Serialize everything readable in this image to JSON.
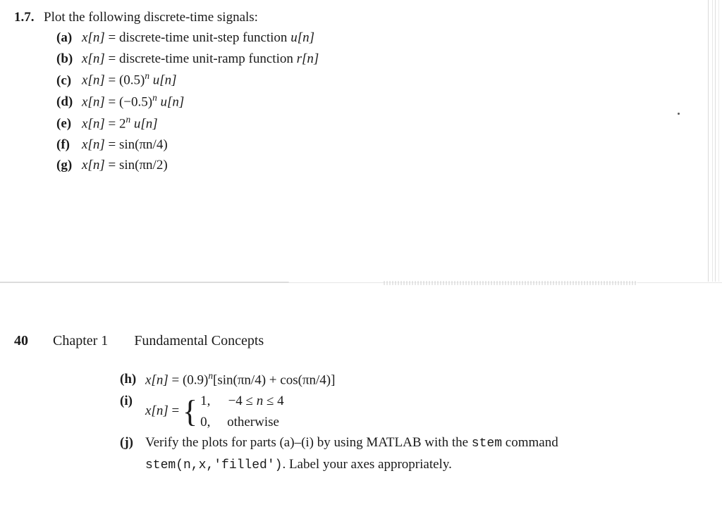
{
  "problem": {
    "number": "1.7.",
    "stem": "Plot the following discrete-time signals:"
  },
  "parts_upper": [
    {
      "label": "(a)",
      "lhs": "x[n]",
      "eq": "=",
      "rhs_plain": "discrete-time unit-step function ",
      "rhs_math": "u[n]"
    },
    {
      "label": "(b)",
      "lhs": "x[n]",
      "eq": "=",
      "rhs_plain": "discrete-time unit-ramp function ",
      "rhs_math": "r[n]"
    },
    {
      "label": "(c)",
      "lhs": "x[n]",
      "eq": "=",
      "rhs_math": "(0.5)",
      "rhs_sup": "n",
      "rhs_tail": " u[n]"
    },
    {
      "label": "(d)",
      "lhs": "x[n]",
      "eq": "=",
      "rhs_math": "(−0.5)",
      "rhs_sup": "n",
      "rhs_tail": " u[n]"
    },
    {
      "label": "(e)",
      "lhs": "x[n]",
      "eq": "=",
      "rhs_math": "2",
      "rhs_sup": "n",
      "rhs_tail": " u[n]"
    },
    {
      "label": "(f)",
      "lhs": "x[n]",
      "eq": "=",
      "rhs_math": "sin(πn/4)"
    },
    {
      "label": "(g)",
      "lhs": "x[n]",
      "eq": "=",
      "rhs_math": "sin(πn/2)"
    }
  ],
  "page_header": {
    "page": "40",
    "chapter": "Chapter 1",
    "title": "Fundamental Concepts"
  },
  "parts_lower": {
    "h": {
      "label": "(h)",
      "lhs": "x[n]",
      "eq": "=",
      "rhs_a": "(0.9)",
      "rhs_sup": "n",
      "rhs_b": "[sin(πn/4) + cos(πn/4)]"
    },
    "i": {
      "label": "(i)",
      "lhs": "x[n]",
      "eq": "=",
      "case1_val": "1,",
      "case1_cond": "−4 ≤ n ≤ 4",
      "case2_val": "0,",
      "case2_cond": "otherwise"
    },
    "j": {
      "label": "(j)",
      "text_a": "Verify the plots for parts (a)–(i) by using MATLAB with the ",
      "code_a": "stem",
      "text_b": " command ",
      "code_b": "stem(n,x,'filled')",
      "text_c": ". Label your axes appropriately."
    }
  }
}
